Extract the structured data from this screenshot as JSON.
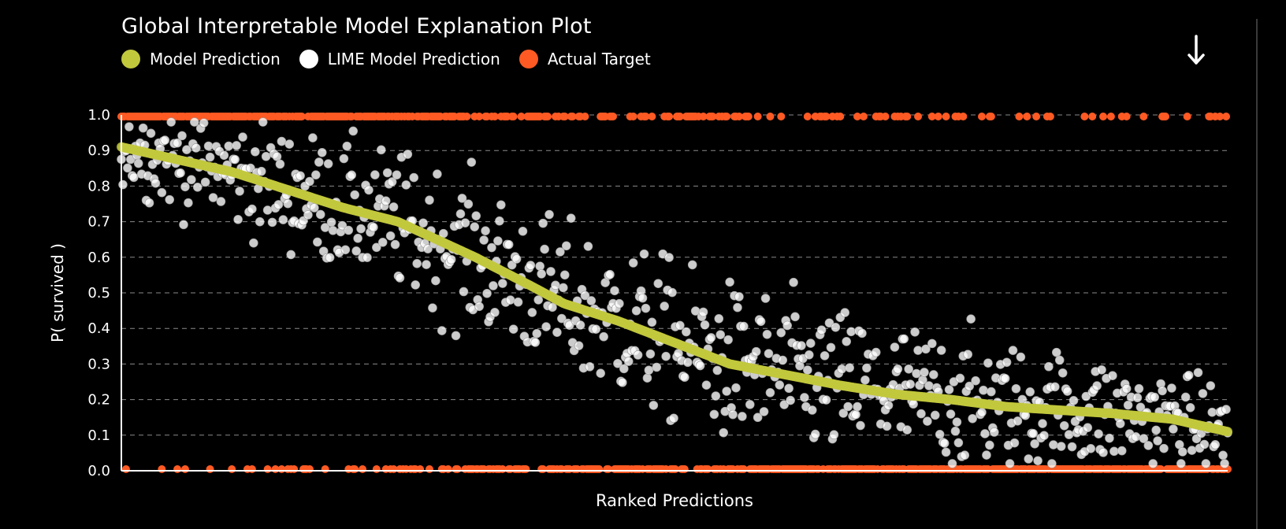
{
  "header": {
    "title": "Global Interpretable Model Explanation Plot",
    "download_icon": "arrow-down-icon"
  },
  "legend": [
    {
      "label": "Model Prediction",
      "color": "#c2c83c"
    },
    {
      "label": "LIME Model Prediction",
      "color": "#ffffff"
    },
    {
      "label": "Actual Target",
      "color": "#ff5a23"
    }
  ],
  "chart_data": {
    "type": "scatter",
    "title": "Global Interpretable Model Explanation Plot",
    "xlabel": "Ranked Predictions",
    "ylabel": "P( survived )",
    "ylim": [
      0,
      1
    ],
    "yticks": [
      "0.0",
      "0.1",
      "0.2",
      "0.3",
      "0.4",
      "0.5",
      "0.6",
      "0.7",
      "0.8",
      "0.9",
      "1.0"
    ],
    "n_points": 712,
    "grid": "horizontal-dashed",
    "legend_position": "top-left",
    "series": [
      {
        "name": "Model Prediction",
        "color": "#c2c83c",
        "trend": [
          {
            "rank_fraction": 0.0,
            "value": 0.91
          },
          {
            "rank_fraction": 0.1,
            "value": 0.84
          },
          {
            "rank_fraction": 0.2,
            "value": 0.74
          },
          {
            "rank_fraction": 0.25,
            "value": 0.7
          },
          {
            "rank_fraction": 0.32,
            "value": 0.6
          },
          {
            "rank_fraction": 0.37,
            "value": 0.52
          },
          {
            "rank_fraction": 0.4,
            "value": 0.47
          },
          {
            "rank_fraction": 0.45,
            "value": 0.42
          },
          {
            "rank_fraction": 0.5,
            "value": 0.36
          },
          {
            "rank_fraction": 0.55,
            "value": 0.3
          },
          {
            "rank_fraction": 0.6,
            "value": 0.27
          },
          {
            "rank_fraction": 0.65,
            "value": 0.24
          },
          {
            "rank_fraction": 0.7,
            "value": 0.215
          },
          {
            "rank_fraction": 0.75,
            "value": 0.2
          },
          {
            "rank_fraction": 0.8,
            "value": 0.18
          },
          {
            "rank_fraction": 0.85,
            "value": 0.17
          },
          {
            "rank_fraction": 0.9,
            "value": 0.16
          },
          {
            "rank_fraction": 0.95,
            "value": 0.145
          },
          {
            "rank_fraction": 1.0,
            "value": 0.11
          }
        ]
      },
      {
        "name": "LIME Model Prediction",
        "color": "#ffffff",
        "pattern": "scattered around the model prediction trend with spread of about 0.1-0.15"
      },
      {
        "name": "Actual Target",
        "color": "#ff5a23",
        "values_present": [
          0,
          1
        ],
        "pattern": "mostly 1 for high-ranked predictions, mostly 0 for low-ranked predictions"
      }
    ]
  }
}
